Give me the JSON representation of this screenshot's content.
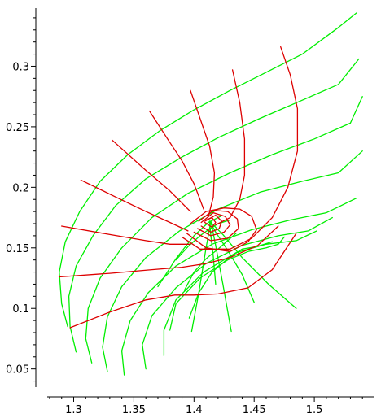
{
  "chart_data": {
    "type": "line",
    "title": "",
    "xlabel": "",
    "ylabel": "",
    "xlim": [
      1.278,
      1.55
    ],
    "ylim": [
      0.035,
      0.348
    ],
    "grid": false,
    "x_ticks": [
      1.3,
      1.35,
      1.4,
      1.45,
      1.5
    ],
    "x_tick_labels": [
      "1.3",
      "1.35",
      "1.4",
      "1.45",
      "1.5"
    ],
    "y_ticks": [
      0.05,
      0.1,
      0.15,
      0.2,
      0.25,
      0.3
    ],
    "y_tick_labels": [
      "0.05",
      "0.1",
      "0.15",
      "0.2",
      "0.25",
      "0.3"
    ],
    "colors": {
      "family_a": "#00ee00",
      "family_b": "#dd0000"
    },
    "series": [
      {
        "family": "a",
        "x": [
          1.295,
          1.29,
          1.288,
          1.293,
          1.305,
          1.322,
          1.345,
          1.372,
          1.4,
          1.43,
          1.46,
          1.49,
          1.52,
          1.535
        ],
        "y": [
          0.085,
          0.104,
          0.13,
          0.155,
          0.18,
          0.205,
          0.227,
          0.247,
          0.264,
          0.28,
          0.295,
          0.31,
          0.332,
          0.344
        ]
      },
      {
        "family": "a",
        "x": [
          1.302,
          1.297,
          1.296,
          1.302,
          1.316,
          1.335,
          1.36,
          1.39,
          1.42,
          1.455,
          1.49,
          1.52,
          1.537
        ],
        "y": [
          0.064,
          0.085,
          0.11,
          0.135,
          0.16,
          0.185,
          0.207,
          0.225,
          0.241,
          0.257,
          0.272,
          0.285,
          0.306
        ]
      },
      {
        "family": "a",
        "x": [
          1.315,
          1.31,
          1.312,
          1.322,
          1.34,
          1.365,
          1.395,
          1.43,
          1.465,
          1.5,
          1.53,
          1.54
        ],
        "y": [
          0.055,
          0.075,
          0.1,
          0.125,
          0.15,
          0.175,
          0.195,
          0.212,
          0.227,
          0.24,
          0.253,
          0.275
        ]
      },
      {
        "family": "a",
        "x": [
          1.328,
          1.324,
          1.328,
          1.34,
          1.36,
          1.388,
          1.42,
          1.455,
          1.49,
          1.52,
          1.54
        ],
        "y": [
          0.048,
          0.068,
          0.093,
          0.118,
          0.142,
          0.164,
          0.182,
          0.196,
          0.205,
          0.212,
          0.23
        ]
      },
      {
        "family": "a",
        "x": [
          1.342,
          1.34,
          1.347,
          1.362,
          1.385,
          1.415,
          1.448,
          1.48,
          1.51,
          1.535
        ],
        "y": [
          0.045,
          0.065,
          0.09,
          0.113,
          0.135,
          0.153,
          0.165,
          0.173,
          0.179,
          0.191
        ]
      },
      {
        "family": "a",
        "x": [
          1.36,
          1.357,
          1.365,
          1.385,
          1.41,
          1.44,
          1.47,
          1.495,
          1.515
        ],
        "y": [
          0.05,
          0.07,
          0.094,
          0.117,
          0.137,
          0.152,
          0.16,
          0.164,
          0.175
        ]
      },
      {
        "family": "a",
        "x": [
          1.375,
          1.375,
          1.385,
          1.408,
          1.435,
          1.46,
          1.485,
          1.502
        ],
        "y": [
          0.061,
          0.082,
          0.107,
          0.13,
          0.146,
          0.153,
          0.156,
          0.164
        ]
      },
      {
        "family": "a",
        "x": [
          1.38,
          1.385,
          1.405,
          1.428,
          1.445,
          1.46,
          1.47,
          1.475
        ],
        "y": [
          0.082,
          0.104,
          0.125,
          0.14,
          0.147,
          0.15,
          0.153,
          0.159
        ]
      },
      {
        "family": "a",
        "x": [
          1.396,
          1.404,
          1.415,
          1.428,
          1.44,
          1.452,
          1.465
        ],
        "y": [
          0.092,
          0.113,
          0.13,
          0.141,
          0.149,
          0.151,
          0.155
        ]
      },
      {
        "family": "a",
        "x": [
          1.392,
          1.4,
          1.41,
          1.42,
          1.428,
          1.435
        ],
        "y": [
          0.115,
          0.13,
          0.141,
          0.149,
          0.156,
          0.162
        ]
      },
      {
        "family": "a",
        "x": [
          1.385,
          1.395,
          1.405,
          1.412,
          1.42,
          1.43
        ],
        "y": [
          0.14,
          0.151,
          0.16,
          0.165,
          0.17,
          0.173
        ]
      },
      {
        "family": "a",
        "x": [
          1.37,
          1.385,
          1.4,
          1.412,
          1.422
        ],
        "y": [
          0.118,
          0.141,
          0.16,
          0.171,
          0.176
        ]
      },
      {
        "family": "a",
        "x": [
          1.398,
          1.404,
          1.41,
          1.414
        ],
        "y": [
          0.081,
          0.113,
          0.15,
          0.172
        ]
      },
      {
        "family": "a",
        "x": [
          1.418,
          1.416,
          1.414,
          1.413
        ],
        "y": [
          0.12,
          0.143,
          0.16,
          0.172
        ]
      },
      {
        "family": "a",
        "x": [
          1.431,
          1.424,
          1.418,
          1.414
        ],
        "y": [
          0.081,
          0.12,
          0.152,
          0.172
        ]
      },
      {
        "family": "a",
        "x": [
          1.45,
          1.44,
          1.428,
          1.418,
          1.413
        ],
        "y": [
          0.105,
          0.128,
          0.148,
          0.163,
          0.172
        ]
      },
      {
        "family": "a",
        "x": [
          1.485,
          1.462,
          1.44,
          1.424,
          1.413
        ],
        "y": [
          0.1,
          0.12,
          0.142,
          0.161,
          0.172
        ]
      },
      {
        "family": "b",
        "x": [
          1.297,
          1.33,
          1.36,
          1.384,
          1.4,
          1.42,
          1.445,
          1.465,
          1.485
        ],
        "y": [
          0.084,
          0.097,
          0.107,
          0.111,
          0.111,
          0.112,
          0.117,
          0.132,
          0.162
        ]
      },
      {
        "family": "b",
        "x": [
          1.288,
          1.33,
          1.365,
          1.39,
          1.41,
          1.43,
          1.453,
          1.47
        ],
        "y": [
          0.126,
          0.129,
          0.132,
          0.134,
          0.137,
          0.142,
          0.152,
          0.168
        ]
      },
      {
        "family": "b",
        "x": [
          1.29,
          1.33,
          1.36,
          1.38,
          1.397
        ],
        "y": [
          0.168,
          0.161,
          0.156,
          0.153,
          0.153
        ]
      },
      {
        "family": "b",
        "x": [
          1.306,
          1.335,
          1.36,
          1.38,
          1.395
        ],
        "y": [
          0.206,
          0.192,
          0.18,
          0.171,
          0.164
        ]
      },
      {
        "family": "b",
        "x": [
          1.332,
          1.36,
          1.38,
          1.397
        ],
        "y": [
          0.239,
          0.214,
          0.197,
          0.18
        ]
      },
      {
        "family": "b",
        "x": [
          1.363,
          1.378,
          1.39,
          1.4,
          1.408
        ],
        "y": [
          0.263,
          0.24,
          0.222,
          0.203,
          0.182
        ]
      },
      {
        "family": "b",
        "x": [
          1.397,
          1.405,
          1.413,
          1.417,
          1.416,
          1.412
        ],
        "y": [
          0.28,
          0.257,
          0.234,
          0.212,
          0.192,
          0.176
        ]
      },
      {
        "family": "b",
        "x": [
          1.432,
          1.438,
          1.442,
          1.442,
          1.438,
          1.43,
          1.418
        ],
        "y": [
          0.297,
          0.27,
          0.24,
          0.21,
          0.19,
          0.175,
          0.169
        ]
      },
      {
        "family": "b",
        "x": [
          1.472,
          1.48,
          1.486,
          1.486,
          1.478,
          1.465,
          1.448,
          1.43,
          1.405,
          1.39
        ],
        "y": [
          0.316,
          0.293,
          0.265,
          0.23,
          0.2,
          0.175,
          0.158,
          0.149,
          0.149,
          0.159
        ]
      },
      {
        "family": "b",
        "x": [
          1.394,
          1.41,
          1.43,
          1.445,
          1.452,
          1.448,
          1.438,
          1.425,
          1.41,
          1.397
        ],
        "y": [
          0.162,
          0.15,
          0.147,
          0.155,
          0.165,
          0.176,
          0.182,
          0.183,
          0.18,
          0.17
        ]
      },
      {
        "family": "b",
        "x": [
          1.4,
          1.414,
          1.428,
          1.437,
          1.436,
          1.428,
          1.416,
          1.404
        ],
        "y": [
          0.163,
          0.156,
          0.158,
          0.166,
          0.174,
          0.18,
          0.181,
          0.172
        ]
      },
      {
        "family": "b",
        "x": [
          1.403,
          1.414,
          1.425,
          1.43,
          1.426,
          1.416,
          1.406
        ],
        "y": [
          0.166,
          0.16,
          0.163,
          0.169,
          0.176,
          0.179,
          0.171
        ]
      },
      {
        "family": "b",
        "x": [
          1.406,
          1.414,
          1.421,
          1.423,
          1.418,
          1.409
        ],
        "y": [
          0.168,
          0.163,
          0.166,
          0.172,
          0.177,
          0.172
        ]
      },
      {
        "family": "b",
        "x": [
          1.409,
          1.415,
          1.418,
          1.415,
          1.41
        ],
        "y": [
          0.171,
          0.167,
          0.171,
          0.175,
          0.173
        ]
      }
    ]
  }
}
